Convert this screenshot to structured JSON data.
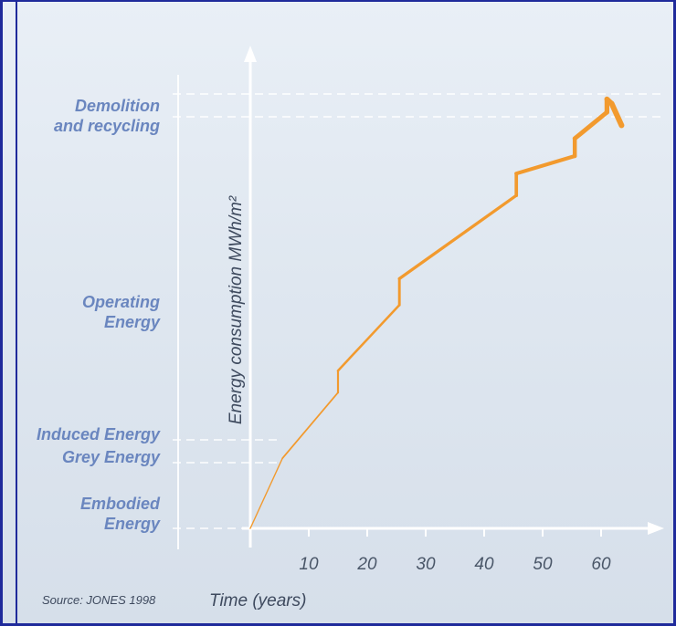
{
  "chart_data": {
    "type": "line",
    "title": "",
    "xlabel": "Time (years)",
    "ylabel": "Energy consumption MWh/m²",
    "xlim": [
      0,
      65
    ],
    "x_ticks": [
      "10",
      "20",
      "30",
      "40",
      "50",
      "60"
    ],
    "category_labels": [
      {
        "id": "demolition",
        "text": "Demolition and recycling"
      },
      {
        "id": "operating",
        "text": "Operating Energy"
      },
      {
        "id": "induced",
        "text": "Induced Energy"
      },
      {
        "id": "grey",
        "text": "Grey Energy"
      },
      {
        "id": "embodied",
        "text": "Embodied Energy"
      }
    ],
    "series": [
      {
        "color": "#f29a2e",
        "points": [
          [
            0,
            0
          ],
          [
            5.5,
            16
          ],
          [
            15,
            31
          ],
          [
            15,
            36
          ],
          [
            25.5,
            51
          ],
          [
            25.5,
            57
          ],
          [
            45.5,
            76
          ],
          [
            45.5,
            81
          ],
          [
            55.5,
            85
          ],
          [
            55.5,
            89
          ],
          [
            61,
            95
          ],
          [
            61,
            98
          ],
          [
            61.8,
            97
          ],
          [
            63.5,
            92
          ]
        ]
      }
    ],
    "reference_lines": [
      "demolition_top",
      "demolition_bottom",
      "induced",
      "grey"
    ],
    "source": "Source: JONES 1998"
  }
}
